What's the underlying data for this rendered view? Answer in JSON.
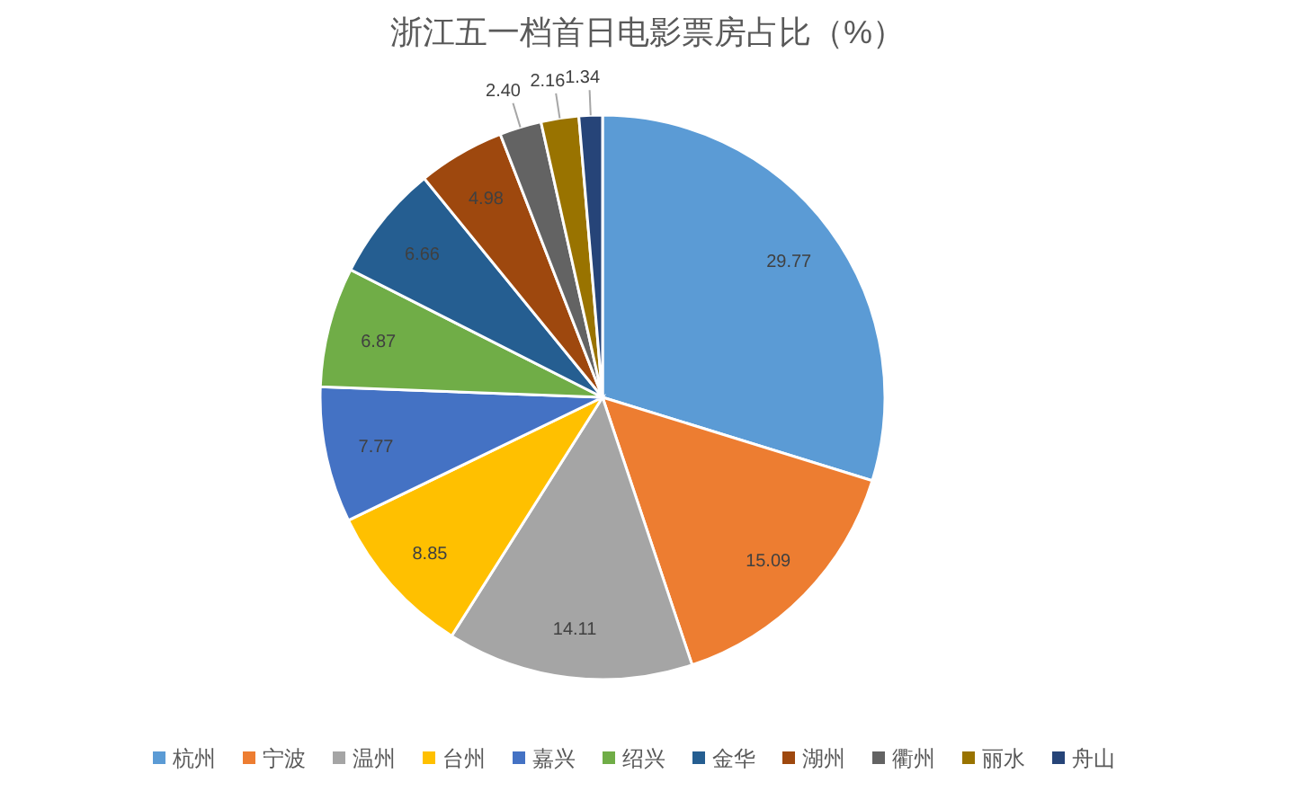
{
  "chart_data": {
    "type": "pie",
    "title": "浙江五一档首日电影票房占比（%）",
    "categories": [
      "杭州",
      "宁波",
      "温州",
      "台州",
      "嘉兴",
      "绍兴",
      "金华",
      "湖州",
      "衢州",
      "丽水",
      "舟山"
    ],
    "values": [
      29.77,
      15.09,
      14.11,
      8.85,
      7.77,
      6.87,
      6.66,
      4.98,
      2.4,
      2.16,
      1.34
    ],
    "colors": [
      "#5b9bd5",
      "#ed7d31",
      "#a5a5a5",
      "#ffc000",
      "#4472c4",
      "#70ad47",
      "#255e91",
      "#9e480e",
      "#636363",
      "#997300",
      "#264478"
    ],
    "value_labels": [
      "29.77",
      "15.09",
      "14.11",
      "8.85",
      "7.77",
      "6.87",
      "6.66",
      "4.98",
      "2.40",
      "2.16",
      "1.34"
    ],
    "legend": "bottom"
  }
}
